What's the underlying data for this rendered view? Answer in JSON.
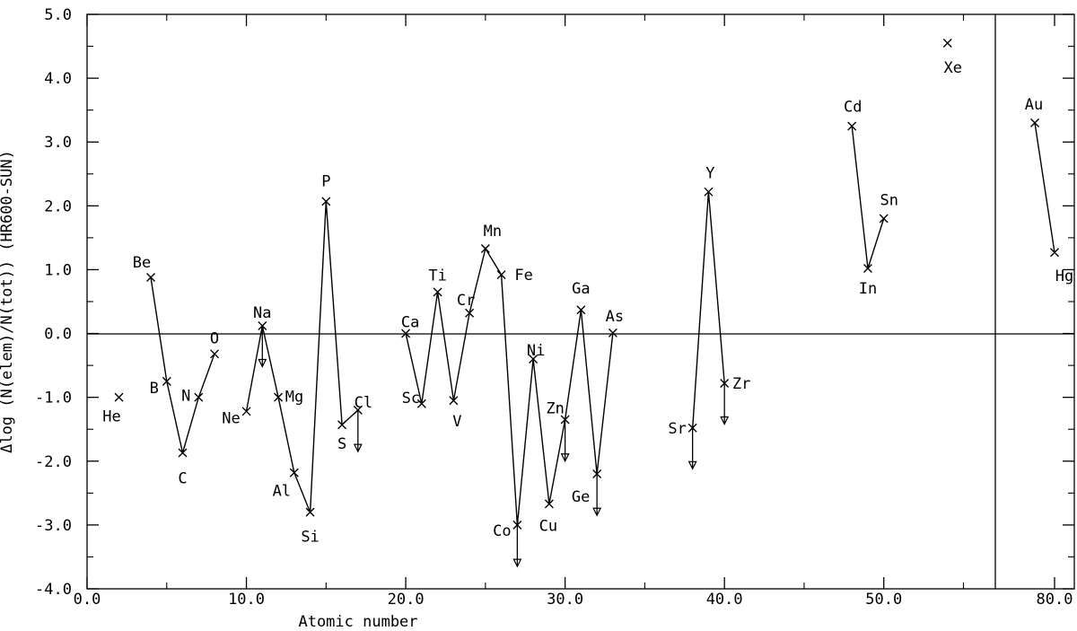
{
  "chart_data": {
    "type": "scatter",
    "xlabel": "Atomic number",
    "ylabel": "Δlog (N(elem)/N(tot)) (HR600-SUN)",
    "ylim": [
      -4.0,
      5.0
    ],
    "grid": false,
    "legend": "none",
    "y_ticks": [
      "-4.0",
      "-3.0",
      "-2.0",
      "-1.0",
      "0.0",
      "1.0",
      "2.0",
      "3.0",
      "4.0",
      "5.0"
    ],
    "x_ticks": [
      "0.0",
      "10.0",
      "20.0",
      "30.0",
      "40.0",
      "50.0",
      "80.0"
    ],
    "x_axis_break": {
      "main_range": [
        0,
        57
      ],
      "inset_range": [
        77,
        81
      ]
    },
    "points": [
      {
        "element": "He",
        "z": 2,
        "value": -1.0
      },
      {
        "element": "Be",
        "z": 4,
        "value": 0.88
      },
      {
        "element": "B",
        "z": 5,
        "value": -0.75
      },
      {
        "element": "C",
        "z": 6,
        "value": -1.87
      },
      {
        "element": "N",
        "z": 7,
        "value": -1.0
      },
      {
        "element": "O",
        "z": 8,
        "value": -0.32
      },
      {
        "element": "Ne",
        "z": 10,
        "value": -1.22
      },
      {
        "element": "Na",
        "z": 11,
        "value": 0.12,
        "upper_limit": -0.52
      },
      {
        "element": "Mg",
        "z": 12,
        "value": -1.0
      },
      {
        "element": "Al",
        "z": 13,
        "value": -2.18
      },
      {
        "element": "Si",
        "z": 14,
        "value": -2.8
      },
      {
        "element": "P",
        "z": 15,
        "value": 2.07
      },
      {
        "element": "S",
        "z": 16,
        "value": -1.43
      },
      {
        "element": "Cl",
        "z": 17,
        "value": -1.2,
        "upper_limit": -1.85
      },
      {
        "element": "Ca",
        "z": 20,
        "value": 0.0
      },
      {
        "element": "Sc",
        "z": 21,
        "value": -1.1
      },
      {
        "element": "Ti",
        "z": 22,
        "value": 0.65
      },
      {
        "element": "V",
        "z": 23,
        "value": -1.05
      },
      {
        "element": "Cr",
        "z": 24,
        "value": 0.32
      },
      {
        "element": "Mn",
        "z": 25,
        "value": 1.33
      },
      {
        "element": "Fe",
        "z": 26,
        "value": 0.92
      },
      {
        "element": "Co",
        "z": 27,
        "value": -3.0,
        "upper_limit": -3.65
      },
      {
        "element": "Ni",
        "z": 28,
        "value": -0.4
      },
      {
        "element": "Cu",
        "z": 29,
        "value": -2.67
      },
      {
        "element": "Zn",
        "z": 30,
        "value": -1.35,
        "upper_limit": -2.0
      },
      {
        "element": "Ga",
        "z": 31,
        "value": 0.37
      },
      {
        "element": "Ge",
        "z": 32,
        "value": -2.2,
        "upper_limit": -2.85
      },
      {
        "element": "As",
        "z": 33,
        "value": 0.01
      },
      {
        "element": "Sr",
        "z": 38,
        "value": -1.48,
        "upper_limit": -2.12
      },
      {
        "element": "Y",
        "z": 39,
        "value": 2.22
      },
      {
        "element": "Zr",
        "z": 40,
        "value": -0.78,
        "upper_limit": -1.42
      },
      {
        "element": "Cd",
        "z": 48,
        "value": 3.25
      },
      {
        "element": "In",
        "z": 49,
        "value": 1.02
      },
      {
        "element": "Sn",
        "z": 50,
        "value": 1.8
      },
      {
        "element": "Xe",
        "z": 54,
        "value": 4.55
      },
      {
        "element": "Au",
        "z": 79,
        "value": 3.3
      },
      {
        "element": "Hg",
        "z": 80,
        "value": 1.27
      }
    ],
    "connected_groups": [
      [
        "Be",
        "B",
        "C",
        "N",
        "O"
      ],
      [
        "Ne",
        "Na",
        "Mg",
        "Al",
        "Si",
        "P",
        "S",
        "Cl"
      ],
      [
        "Ca",
        "Sc",
        "Ti",
        "V",
        "Cr",
        "Mn",
        "Fe",
        "Co",
        "Ni",
        "Cu",
        "Zn",
        "Ga",
        "Ge",
        "As"
      ],
      [
        "Sr",
        "Y",
        "Zr"
      ],
      [
        "Cd",
        "In",
        "Sn"
      ],
      [
        "Au",
        "Hg"
      ]
    ]
  }
}
